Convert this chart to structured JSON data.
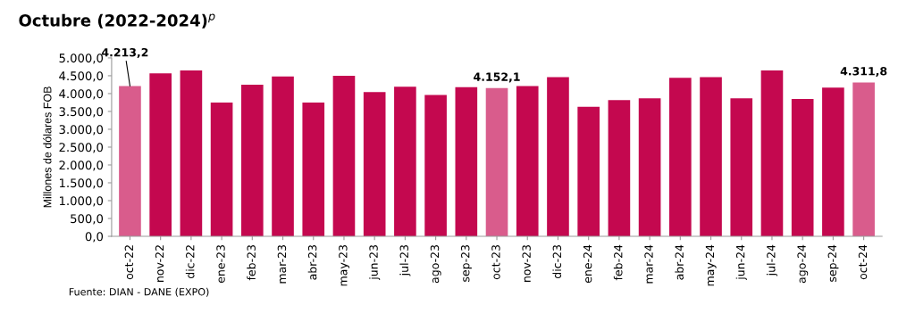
{
  "chart_data": {
    "type": "bar",
    "title": "Octubre (2022-2024)$^{p}$",
    "ylabel": "Millones de dólares FOB",
    "categories": [
      "oct-22",
      "nov-22",
      "dic-22",
      "ene-23",
      "feb-23",
      "mar-23",
      "abr-23",
      "may-23",
      "jun-23",
      "jul-23",
      "ago-23",
      "sep-23",
      "oct-23",
      "nov-23",
      "dic-23",
      "ene-24",
      "feb-24",
      "mar-24",
      "abr-24",
      "may-24",
      "jun-24",
      "jul-24",
      "ago-24",
      "sep-24",
      "oct-24"
    ],
    "values": [
      4213.2,
      4570,
      4650,
      3750,
      4250,
      4480,
      3750,
      4500,
      4040,
      4190,
      3960,
      4180,
      4152.1,
      4210,
      4460,
      3630,
      3820,
      3870,
      4440,
      4460,
      3870,
      4650,
      3850,
      4170,
      4311.8
    ],
    "colors": [
      "#d95c8c",
      "#c4084f",
      "#c4084f",
      "#c4084f",
      "#c4084f",
      "#c4084f",
      "#c4084f",
      "#c4084f",
      "#c4084f",
      "#c4084f",
      "#c4084f",
      "#c4084f",
      "#d95c8c",
      "#c4084f",
      "#c4084f",
      "#c4084f",
      "#c4084f",
      "#c4084f",
      "#c4084f",
      "#c4084f",
      "#c4084f",
      "#c4084f",
      "#c4084f",
      "#c4084f",
      "#d95c8c"
    ],
    "value_labels": [
      "4.213,2",
      null,
      null,
      null,
      null,
      null,
      null,
      null,
      null,
      null,
      null,
      null,
      "4.152,1",
      null,
      null,
      null,
      null,
      null,
      null,
      null,
      null,
      null,
      null,
      null,
      "4.311,8"
    ],
    "ylim": [
      0,
      5000
    ],
    "yticks": [
      {
        "value": 0,
        "label": "0,0"
      },
      {
        "value": 500,
        "label": "500,0"
      },
      {
        "value": 1000,
        "label": "1.000,0"
      },
      {
        "value": 1500,
        "label": "1.500,0"
      },
      {
        "value": 2000,
        "label": "2.000,0"
      },
      {
        "value": 2500,
        "label": "2.500,0"
      },
      {
        "value": 3000,
        "label": "3.000,0"
      },
      {
        "value": 3500,
        "label": "3.500,0"
      },
      {
        "value": 4000,
        "label": "4.000,0"
      },
      {
        "value": 4500,
        "label": "4.500,0"
      },
      {
        "value": 5000,
        "label": "5.000,0"
      }
    ],
    "grid": false,
    "annotations": [
      "Fuente: DIAN - DANE (EXPO)"
    ]
  }
}
